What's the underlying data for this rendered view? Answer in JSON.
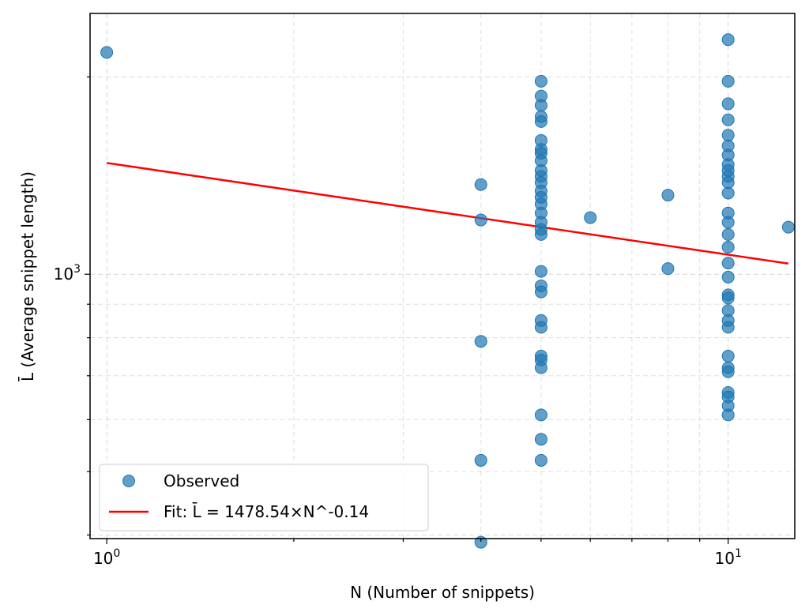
{
  "chart_data": {
    "type": "scatter",
    "x_scale": "log",
    "y_scale": "log",
    "xlabel": "N (Number of snippets)",
    "ylabel": "L̄ (Average snippet length)",
    "xlim": [
      0.94,
      12.8
    ],
    "ylim": [
      395,
      2500
    ],
    "x_major_ticks": [
      {
        "value": 1,
        "base": "10",
        "exp": "0"
      },
      {
        "value": 10,
        "base": "10",
        "exp": "1"
      }
    ],
    "y_major_ticks": [
      {
        "value": 1000,
        "base": "10",
        "exp": "3"
      }
    ],
    "grid": true,
    "legend_position": "lower-left",
    "series": [
      {
        "name": "Observed",
        "kind": "scatter",
        "color": "#1f77b4",
        "points": [
          [
            1,
            2180
          ],
          [
            4,
            1370
          ],
          [
            4,
            1210
          ],
          [
            4,
            790
          ],
          [
            4,
            520
          ],
          [
            4,
            390
          ],
          [
            5,
            1970
          ],
          [
            5,
            1870
          ],
          [
            5,
            1810
          ],
          [
            5,
            1740
          ],
          [
            5,
            1710
          ],
          [
            5,
            1600
          ],
          [
            5,
            1550
          ],
          [
            5,
            1530
          ],
          [
            5,
            1490
          ],
          [
            5,
            1440
          ],
          [
            5,
            1410
          ],
          [
            5,
            1380
          ],
          [
            5,
            1340
          ],
          [
            5,
            1310
          ],
          [
            5,
            1280
          ],
          [
            5,
            1240
          ],
          [
            5,
            1200
          ],
          [
            5,
            1170
          ],
          [
            5,
            1150
          ],
          [
            5,
            1010
          ],
          [
            5,
            960
          ],
          [
            5,
            940
          ],
          [
            5,
            850
          ],
          [
            5,
            830
          ],
          [
            5,
            750
          ],
          [
            5,
            740
          ],
          [
            5,
            720
          ],
          [
            5,
            610
          ],
          [
            5,
            560
          ],
          [
            5,
            520
          ],
          [
            6,
            1220
          ],
          [
            8,
            1320
          ],
          [
            8,
            1020
          ],
          [
            10,
            2280
          ],
          [
            10,
            1970
          ],
          [
            10,
            1820
          ],
          [
            10,
            1720
          ],
          [
            10,
            1630
          ],
          [
            10,
            1570
          ],
          [
            10,
            1520
          ],
          [
            10,
            1470
          ],
          [
            10,
            1440
          ],
          [
            10,
            1410
          ],
          [
            10,
            1380
          ],
          [
            10,
            1330
          ],
          [
            10,
            1240
          ],
          [
            10,
            1200
          ],
          [
            10,
            1150
          ],
          [
            10,
            1100
          ],
          [
            10,
            1040
          ],
          [
            10,
            990
          ],
          [
            10,
            930
          ],
          [
            10,
            920
          ],
          [
            10,
            880
          ],
          [
            10,
            850
          ],
          [
            10,
            830
          ],
          [
            10,
            750
          ],
          [
            10,
            720
          ],
          [
            10,
            710
          ],
          [
            10,
            660
          ],
          [
            10,
            650
          ],
          [
            10,
            630
          ],
          [
            10,
            610
          ],
          [
            12.5,
            1180
          ]
        ]
      },
      {
        "name": "Fit: L̄ = 1478.54×N^-0.14",
        "kind": "line",
        "color": "#ff0000",
        "coefficient": 1478.54,
        "exponent": -0.14,
        "x_range": [
          1,
          12.5
        ]
      }
    ]
  }
}
